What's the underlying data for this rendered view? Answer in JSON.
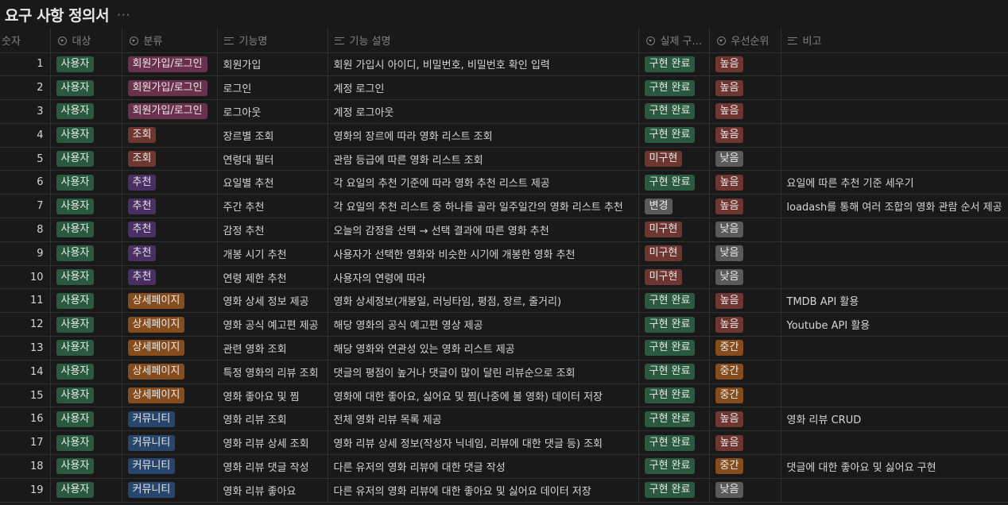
{
  "page": {
    "title": "요구 사항 정의서",
    "more": "···"
  },
  "columns": {
    "num": "숫자",
    "target": "대상",
    "category": "분류",
    "feature": "기능명",
    "desc": "기능 설명",
    "status": "실제 구...",
    "priority": "우선순위",
    "note": "비고"
  },
  "colors": {
    "target": {
      "사용자": "#2b593f"
    },
    "category": {
      "회원가입/로그인": "#69314c",
      "조회": "#6e3630",
      "추천": "#492f64",
      "상세페이지": "#854c1d",
      "커뮤니티": "#28456c"
    },
    "status": {
      "구현 완료": "#2b593f",
      "미구현": "#6e3630",
      "변경": "#5a5a5a"
    },
    "priority": {
      "높음": "#6e3630",
      "낮음": "#5a5a5a",
      "중간": "#854c1d"
    }
  },
  "rows": [
    {
      "num": "1",
      "target": "사용자",
      "category": "회원가입/로그인",
      "feature": "회원가입",
      "desc": "회원 가입시 아이디, 비밀번호, 비밀번호 확인 입력",
      "status": "구현 완료",
      "priority": "높음",
      "note": ""
    },
    {
      "num": "2",
      "target": "사용자",
      "category": "회원가입/로그인",
      "feature": "로그인",
      "desc": "계정 로그인",
      "status": "구현 완료",
      "priority": "높음",
      "note": ""
    },
    {
      "num": "3",
      "target": "사용자",
      "category": "회원가입/로그인",
      "feature": "로그아웃",
      "desc": "계정 로그아웃",
      "status": "구현 완료",
      "priority": "높음",
      "note": ""
    },
    {
      "num": "4",
      "target": "사용자",
      "category": "조회",
      "feature": "장르별 조회",
      "desc": "영화의 장르에 따라 영화 리스트 조회",
      "status": "구현 완료",
      "priority": "높음",
      "note": ""
    },
    {
      "num": "5",
      "target": "사용자",
      "category": "조회",
      "feature": "연령대 필터",
      "desc": "관람 등급에 따른 영화 리스트 조회",
      "status": "미구현",
      "priority": "낮음",
      "note": ""
    },
    {
      "num": "6",
      "target": "사용자",
      "category": "추천",
      "feature": "요일별 추천",
      "desc": "각 요일의 추천 기준에 따라 영화 추천 리스트 제공",
      "status": "구현 완료",
      "priority": "높음",
      "note": "요일에 따른 추천 기준 세우기"
    },
    {
      "num": "7",
      "target": "사용자",
      "category": "추천",
      "feature": "주간 추천",
      "desc": "각 요일의 추천 리스트 중 하나를 골라 일주일간의 영화 리스트 추천",
      "status": "변경",
      "priority": "높음",
      "note": "loadash를 통해 여러 조합의 영화 관람 순서 제공"
    },
    {
      "num": "8",
      "target": "사용자",
      "category": "추천",
      "feature": "감정 추천",
      "desc": "오늘의 감정을 선택 → 선택 결과에 따른 영화 추천",
      "status": "미구현",
      "priority": "낮음",
      "note": ""
    },
    {
      "num": "9",
      "target": "사용자",
      "category": "추천",
      "feature": "개봉 시기 추천",
      "desc": "사용자가 선택한 영화와 비슷한 시기에 개봉한 영화 추천",
      "status": "미구현",
      "priority": "낮음",
      "note": ""
    },
    {
      "num": "10",
      "target": "사용자",
      "category": "추천",
      "feature": "연령 제한 추천",
      "desc": "사용자의 연령에 따라",
      "status": "미구현",
      "priority": "낮음",
      "note": ""
    },
    {
      "num": "11",
      "target": "사용자",
      "category": "상세페이지",
      "feature": "영화 상세 정보 제공",
      "desc": "영화 상세정보(개봉일, 러닝타임, 평점, 장르, 줄거리)",
      "status": "구현 완료",
      "priority": "높음",
      "note": "TMDB API 활용"
    },
    {
      "num": "12",
      "target": "사용자",
      "category": "상세페이지",
      "feature": "영화 공식 예고편 제공",
      "desc": "해당 영화의 공식 예고편 영상 제공",
      "status": "구현 완료",
      "priority": "높음",
      "note": "Youtube API 활용"
    },
    {
      "num": "13",
      "target": "사용자",
      "category": "상세페이지",
      "feature": "관련 영화 조회",
      "desc": "해당 영화와 연관성 있는 영화 리스트 제공",
      "status": "구현 완료",
      "priority": "중간",
      "note": ""
    },
    {
      "num": "14",
      "target": "사용자",
      "category": "상세페이지",
      "feature": "특정 영화의 리뷰 조회",
      "desc": "댓글의 평점이 높거나 댓글이 많이 달린 리뷰순으로 조회",
      "status": "구현 완료",
      "priority": "중간",
      "note": ""
    },
    {
      "num": "15",
      "target": "사용자",
      "category": "상세페이지",
      "feature": "영화 좋아요 및 찜",
      "desc": "영화에 대한 좋아요, 싫어요 및 찜(나중에 볼 영화) 데이터 저장",
      "status": "구현 완료",
      "priority": "중간",
      "note": ""
    },
    {
      "num": "16",
      "target": "사용자",
      "category": "커뮤니티",
      "feature": "영화 리뷰 조회",
      "desc": "전체 영화 리뷰 목록 제공",
      "status": "구현 완료",
      "priority": "높음",
      "note": "영화 리뷰 CRUD"
    },
    {
      "num": "17",
      "target": "사용자",
      "category": "커뮤니티",
      "feature": "영화 리뷰 상세 조회",
      "desc": "영화 리뷰 상세 정보(작성자 닉네임,  리뷰에 대한 댓글 등) 조회",
      "status": "구현 완료",
      "priority": "높음",
      "note": ""
    },
    {
      "num": "18",
      "target": "사용자",
      "category": "커뮤니티",
      "feature": "영화 리뷰 댓글 작성",
      "desc": "다른 유저의 영화 리뷰에 대한 댓글 작성",
      "status": "구현 완료",
      "priority": "중간",
      "note": "댓글에 대한 좋아요 및 싫어요 구현"
    },
    {
      "num": "19",
      "target": "사용자",
      "category": "커뮤니티",
      "feature": "영화 리뷰 좋아요",
      "desc": "다른 유저의 영화 리뷰에 대한 좋아요 및 싫어요 데이터 저장",
      "status": "구현 완료",
      "priority": "낮음",
      "note": ""
    }
  ]
}
